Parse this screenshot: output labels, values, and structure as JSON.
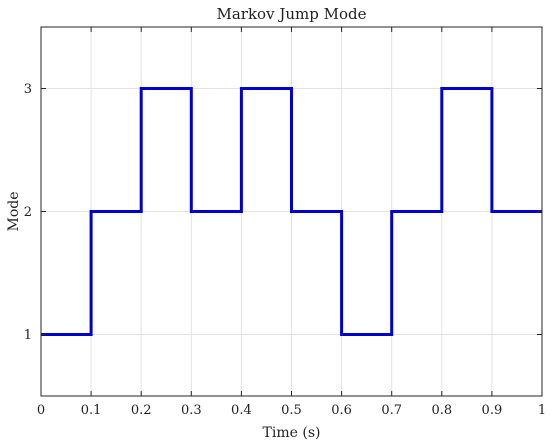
{
  "chart_data": {
    "type": "line",
    "step": true,
    "title": "Markov Jump Mode",
    "xlabel": "Time (s)",
    "ylabel": "Mode",
    "xlim": [
      0,
      1
    ],
    "ylim": [
      0.5,
      3.5
    ],
    "xticks": [
      0,
      0.1,
      0.2,
      0.3,
      0.4,
      0.5,
      0.6,
      0.7,
      0.8,
      0.9,
      1
    ],
    "xtick_labels": [
      "0",
      "0.1",
      "0.2",
      "0.3",
      "0.4",
      "0.5",
      "0.6",
      "0.7",
      "0.8",
      "0.9",
      "1"
    ],
    "yticks": [
      1,
      2,
      3
    ],
    "ytick_labels": [
      "1",
      "2",
      "3"
    ],
    "grid": true,
    "series": [
      {
        "color": "#0000cc",
        "x": [
          0,
          0.1,
          0.2,
          0.3,
          0.4,
          0.5,
          0.6,
          0.7,
          0.8,
          0.9,
          1.0
        ],
        "y": [
          1,
          2,
          3,
          2,
          3,
          2,
          1,
          2,
          3,
          2,
          2
        ]
      }
    ]
  }
}
